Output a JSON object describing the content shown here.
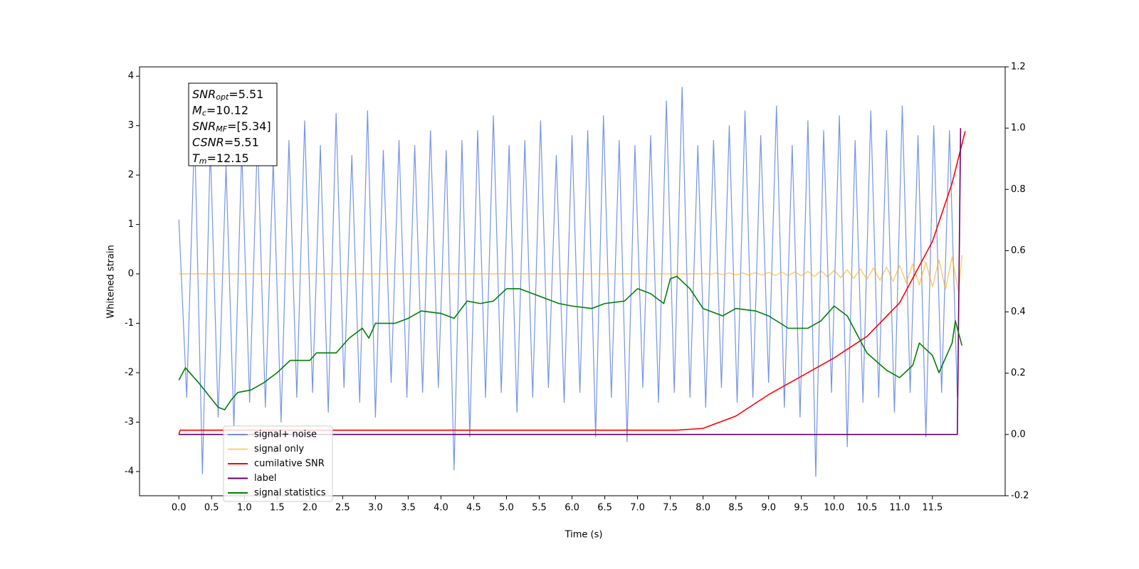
{
  "chart_data": {
    "type": "line",
    "xlabel": "Time (s)",
    "ylabel": "Whitened strain",
    "xlim": [
      -0.6,
      12.61
    ],
    "ylim": [
      -4.49,
      4.19
    ],
    "y2lim": [
      -0.2,
      1.2
    ],
    "xticks": [
      {
        "value": 0,
        "label": "0.0"
      },
      0.5,
      {
        "value": 1,
        "label": "1.0"
      },
      1.5,
      {
        "value": 2,
        "label": "2.0"
      },
      2.5,
      {
        "value": 3,
        "label": "3.0"
      },
      3.5,
      {
        "value": 4,
        "label": "4.0"
      },
      4.5,
      {
        "value": 5,
        "label": "5.0"
      },
      5.5,
      {
        "value": 6,
        "label": "6.0"
      },
      6.5,
      {
        "value": 7,
        "label": "7.0"
      },
      7.5,
      {
        "value": 8,
        "label": "8.0"
      },
      8.5,
      {
        "value": 9,
        "label": "9.0"
      },
      9.5,
      {
        "value": 10,
        "label": "10.0"
      },
      10.5,
      {
        "value": 11,
        "label": "11.0"
      },
      11.5
    ],
    "yticks": [
      -4,
      -3,
      -2,
      -1,
      0,
      1,
      2,
      3,
      4
    ],
    "y2ticks": [
      -0.2,
      {
        "value": 0,
        "label": "0.0"
      },
      0.2,
      0.4,
      0.6,
      0.8,
      {
        "value": 1,
        "label": "1.0"
      },
      1.2
    ],
    "legend": "lower left",
    "annotation": [
      {
        "text": "SNR",
        "sub": "opt",
        "rest": "=5.51"
      },
      {
        "text": "M",
        "sub": "c",
        "rest": "=10.12"
      },
      {
        "text": "SNR",
        "sub": "MF",
        "rest": "=[5.34]"
      },
      {
        "text": "CSNR",
        "sub": null,
        "rest": "=5.51"
      },
      {
        "text": "T",
        "sub": "m",
        "rest": "=12.15"
      }
    ],
    "series": [
      {
        "name": "signal+ noise",
        "color": "#6f8ee6",
        "x": [
          0,
          0.12,
          0.24,
          0.36,
          0.48,
          0.6,
          0.72,
          0.84,
          0.96,
          1.08,
          1.2,
          1.32,
          1.44,
          1.56,
          1.68,
          1.8,
          1.92,
          2.04,
          2.16,
          2.28,
          2.4,
          2.52,
          2.64,
          2.76,
          2.88,
          3,
          3.12,
          3.24,
          3.36,
          3.48,
          3.6,
          3.72,
          3.84,
          3.96,
          4.08,
          4.2,
          4.32,
          4.44,
          4.56,
          4.68,
          4.8,
          4.92,
          5.04,
          5.16,
          5.28,
          5.4,
          5.52,
          5.64,
          5.76,
          5.88,
          6,
          6.12,
          6.24,
          6.36,
          6.48,
          6.6,
          6.72,
          6.84,
          6.96,
          7.08,
          7.2,
          7.32,
          7.44,
          7.56,
          7.68,
          7.8,
          7.92,
          8.04,
          8.16,
          8.28,
          8.4,
          8.52,
          8.64,
          8.76,
          8.88,
          9,
          9.12,
          9.24,
          9.36,
          9.48,
          9.6,
          9.72,
          9.84,
          9.96,
          10.08,
          10.2,
          10.32,
          10.44,
          10.56,
          10.68,
          10.8,
          10.92,
          11.04,
          11.16,
          11.28,
          11.4,
          11.52,
          11.64,
          11.76,
          11.88
        ],
        "values": [
          1.1,
          -2.5,
          2.9,
          -4.05,
          2.6,
          -2.9,
          2.2,
          -3.1,
          2.5,
          -2.6,
          2.8,
          -2.7,
          2.3,
          -3.0,
          2.7,
          -2.5,
          3.1,
          -2.4,
          2.6,
          -2.8,
          3.25,
          -2.3,
          2.4,
          -2.6,
          3.3,
          -2.9,
          2.5,
          -2.2,
          2.7,
          -2.5,
          2.6,
          -2.4,
          2.9,
          -2.3,
          2.5,
          -3.97,
          2.7,
          -3.3,
          2.9,
          -2.5,
          3.2,
          -2.4,
          2.6,
          -2.8,
          2.7,
          -2.5,
          3.1,
          -2.3,
          2.4,
          -2.6,
          2.8,
          -2.4,
          2.9,
          -3.3,
          3.2,
          -2.5,
          2.7,
          -3.4,
          2.6,
          -2.3,
          2.8,
          -2.6,
          3.5,
          -2.4,
          3.78,
          -2.5,
          2.6,
          -2.7,
          2.7,
          -2.3,
          3.0,
          -2.6,
          3.3,
          -2.5,
          2.8,
          -2.2,
          3.4,
          -2.7,
          2.6,
          -2.9,
          3.1,
          -4.1,
          2.9,
          -2.4,
          3.2,
          -3.5,
          2.7,
          -2.6,
          3.3,
          -2.5,
          2.9,
          -2.8,
          3.4,
          -2.4,
          2.8,
          -3.3,
          3.0,
          -2.4,
          2.9,
          -2.5
        ]
      },
      {
        "name": "signal only",
        "color": "#ffa500",
        "x": [
          0,
          7.9,
          8,
          8.1,
          8.2,
          8.3,
          8.4,
          8.5,
          8.6,
          8.7,
          8.8,
          8.9,
          9,
          9.1,
          9.2,
          9.3,
          9.4,
          9.5,
          9.6,
          9.7,
          9.8,
          9.9,
          10,
          10.1,
          10.2,
          10.3,
          10.4,
          10.5,
          10.6,
          10.7,
          10.8,
          10.9,
          11,
          11.1,
          11.2,
          11.3,
          11.4,
          11.5,
          11.6,
          11.7,
          11.8,
          11.9,
          11.95
        ],
        "values": [
          0,
          0,
          0.01,
          -0.01,
          0.015,
          -0.015,
          0.02,
          -0.02,
          0.02,
          -0.02,
          0.025,
          -0.025,
          0.03,
          -0.03,
          0.035,
          -0.035,
          0.04,
          -0.04,
          0.05,
          -0.05,
          0.06,
          -0.06,
          0.07,
          -0.075,
          0.08,
          -0.09,
          0.1,
          -0.11,
          0.12,
          -0.13,
          0.14,
          -0.15,
          0.17,
          -0.18,
          0.2,
          -0.22,
          0.24,
          -0.26,
          0.28,
          -0.31,
          0.34,
          -0.37,
          0.38
        ]
      },
      {
        "name": "cumilative SNR",
        "color": "#ff0000",
        "axis": "y2",
        "x": [
          0,
          0.02,
          7.6,
          8.0,
          8.5,
          9.0,
          9.5,
          10.0,
          10.5,
          11.0,
          11.5,
          11.8,
          12.0
        ],
        "values": [
          0.0,
          0.014,
          0.014,
          0.02,
          0.06,
          0.13,
          0.19,
          0.25,
          0.32,
          0.43,
          0.63,
          0.82,
          0.99
        ]
      },
      {
        "name": "label",
        "color": "#6a006a",
        "axis": "y2",
        "x": [
          0,
          11.88,
          11.93
        ],
        "values": [
          0,
          0,
          1.0
        ]
      },
      {
        "name": "signal statistics",
        "color": "#008000",
        "x": [
          0,
          0.1,
          0.3,
          0.6,
          0.7,
          0.8,
          0.9,
          1.1,
          1.3,
          1.5,
          1.7,
          2.0,
          2.1,
          2.4,
          2.6,
          2.8,
          2.9,
          3.0,
          3.3,
          3.5,
          3.7,
          4.0,
          4.2,
          4.4,
          4.6,
          4.8,
          5.0,
          5.2,
          5.4,
          5.6,
          5.8,
          6.0,
          6.3,
          6.5,
          6.8,
          7.0,
          7.2,
          7.4,
          7.5,
          7.6,
          7.8,
          8.0,
          8.3,
          8.5,
          8.8,
          9.0,
          9.3,
          9.6,
          9.8,
          10.0,
          10.2,
          10.5,
          10.8,
          11.0,
          11.2,
          11.3,
          11.5,
          11.6,
          11.8,
          11.85,
          11.95
        ],
        "values": [
          -2.15,
          -1.9,
          -2.2,
          -2.7,
          -2.75,
          -2.55,
          -2.4,
          -2.35,
          -2.2,
          -2.0,
          -1.75,
          -1.75,
          -1.6,
          -1.6,
          -1.3,
          -1.1,
          -1.3,
          -1.0,
          -1.0,
          -0.9,
          -0.75,
          -0.8,
          -0.9,
          -0.55,
          -0.6,
          -0.55,
          -0.3,
          -0.3,
          -0.4,
          -0.5,
          -0.6,
          -0.65,
          -0.7,
          -0.6,
          -0.55,
          -0.3,
          -0.4,
          -0.6,
          -0.1,
          -0.05,
          -0.3,
          -0.7,
          -0.85,
          -0.7,
          -0.75,
          -0.85,
          -1.1,
          -1.1,
          -0.95,
          -0.65,
          -0.85,
          -1.6,
          -1.95,
          -2.1,
          -1.85,
          -1.4,
          -1.65,
          -2.0,
          -1.4,
          -0.95,
          -1.45
        ]
      }
    ]
  }
}
